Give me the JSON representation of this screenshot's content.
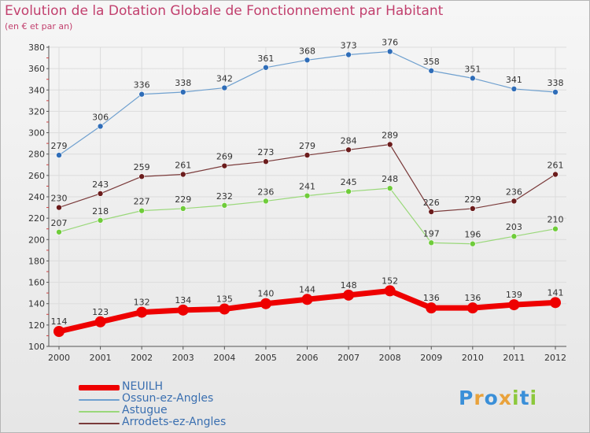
{
  "title": "Evolution de la Dotation Globale de Fonctionnement par Habitant",
  "subtitle": "(en € et par an)",
  "logo": {
    "text": "Proxiti",
    "letters": [
      {
        "ch": "P",
        "color": "#3a8fd8"
      },
      {
        "ch": "r",
        "color": "#e9a23b"
      },
      {
        "ch": "o",
        "color": "#3a8fd8"
      },
      {
        "ch": "x",
        "color": "#e9a23b"
      },
      {
        "ch": "i",
        "color": "#8cc83c"
      },
      {
        "ch": "t",
        "color": "#3a8fd8"
      },
      {
        "ch": "i",
        "color": "#8cc83c"
      }
    ]
  },
  "chart_data": {
    "type": "line",
    "x": [
      "2000",
      "2001",
      "2002",
      "2003",
      "2004",
      "2005",
      "2006",
      "2007",
      "2008",
      "2009",
      "2010",
      "2011",
      "2012"
    ],
    "ylim": [
      100,
      380
    ],
    "yticks": [
      100,
      120,
      140,
      160,
      180,
      200,
      220,
      240,
      260,
      280,
      300,
      320,
      340,
      360,
      380
    ],
    "grid": true,
    "legend_position": "bottom-left",
    "series": [
      {
        "name": "NEUILH",
        "color": "#ee0000",
        "width": 7,
        "marker": 7,
        "label_color": "#3a6fb0",
        "values": [
          114,
          123,
          132,
          134,
          135,
          140,
          144,
          148,
          152,
          136,
          136,
          139,
          141
        ]
      },
      {
        "name": "Ossun-ez-Angles",
        "color": "#6fa0cf",
        "marker_color": "#2f6db8",
        "width": 1.2,
        "marker": 3.5,
        "label_color": "#333333",
        "values": [
          279,
          306,
          336,
          338,
          342,
          361,
          368,
          373,
          376,
          358,
          351,
          341,
          338
        ]
      },
      {
        "name": "Astugue",
        "color": "#9ad87a",
        "marker_color": "#6fcc3a",
        "width": 1.2,
        "marker": 3.5,
        "label_color": "#333333",
        "values": [
          207,
          218,
          227,
          229,
          232,
          236,
          241,
          245,
          248,
          197,
          196,
          203,
          210
        ]
      },
      {
        "name": "Arrodets-ez-Angles",
        "color": "#7a3a3a",
        "marker_color": "#6b1c1c",
        "width": 1.2,
        "marker": 3.5,
        "label_color": "#333333",
        "values": [
          230,
          243,
          259,
          261,
          269,
          273,
          279,
          284,
          289,
          226,
          229,
          236,
          261
        ]
      }
    ]
  }
}
